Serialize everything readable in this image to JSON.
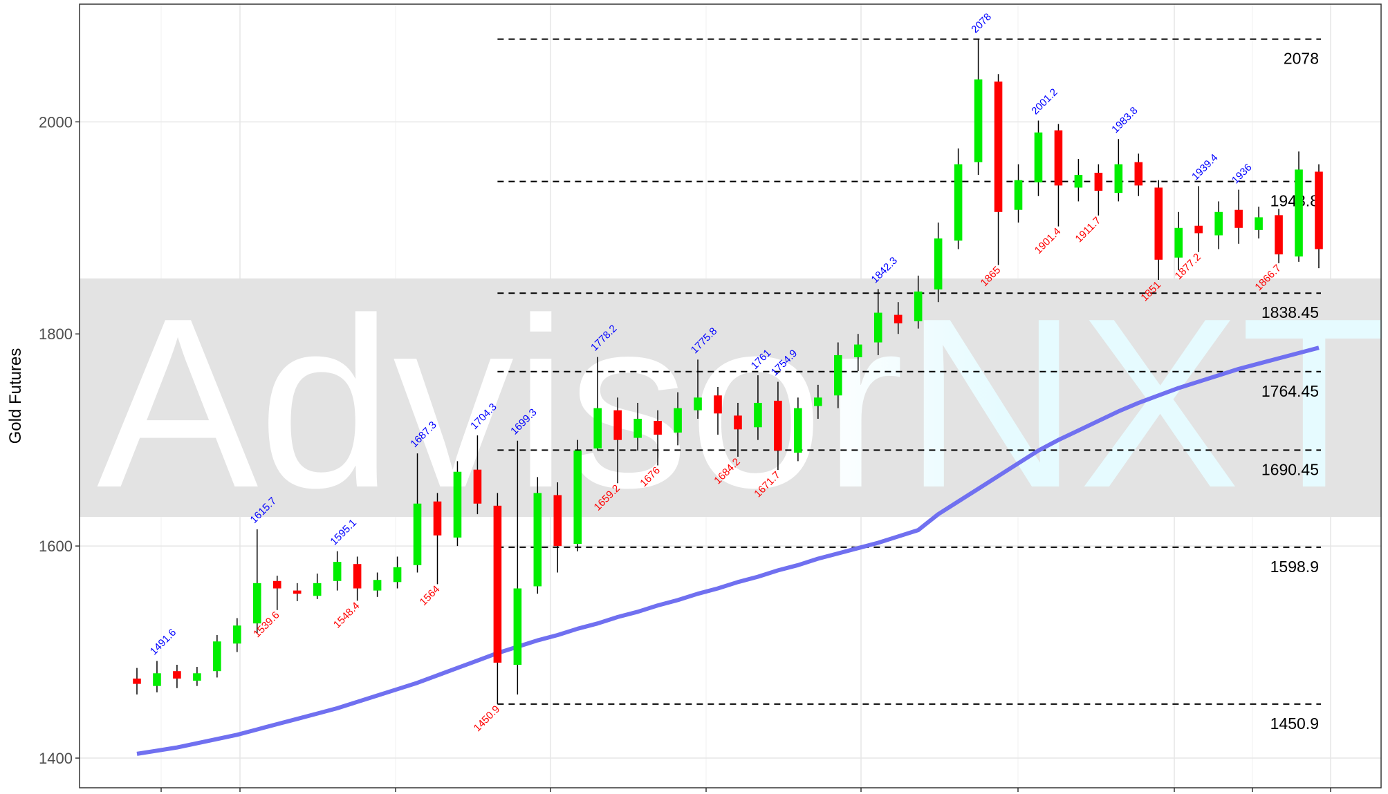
{
  "chart_data": {
    "type": "candlestick",
    "watermark": "AdvisorNXT",
    "y_label": "Gold Futures",
    "ylim": [
      1372,
      2111
    ],
    "yticks": [
      1400,
      1600,
      1800,
      2000
    ],
    "grid": true,
    "up_color": "#00ee00",
    "down_color": "#ff0000",
    "categories": [
      null,
      null,
      null,
      null,
      null,
      null,
      null,
      null,
      null,
      null,
      null,
      null,
      null,
      null,
      null,
      null,
      null,
      null,
      null,
      null,
      null,
      null,
      null,
      null,
      null,
      null,
      null,
      null,
      null,
      null,
      null,
      null,
      null,
      null,
      null,
      null,
      null,
      null,
      null,
      null,
      null,
      null,
      null,
      null,
      null,
      null,
      null,
      null,
      null,
      null,
      null,
      null,
      null,
      null,
      null,
      null,
      null,
      null,
      null,
      null
    ],
    "open": [
      1475,
      1468,
      1482,
      1473,
      1482,
      1508,
      1527,
      1567,
      1558,
      1553,
      1567,
      1583,
      1558,
      1566,
      1582,
      1642,
      1608,
      1672,
      1638,
      1488,
      1562,
      1648,
      1602,
      1692,
      1728,
      1702,
      1718,
      1707,
      1728,
      1742,
      1723,
      1712,
      1737,
      1688,
      1732,
      1742,
      1778,
      1792,
      1818,
      1812,
      1842,
      1888,
      1962,
      2038,
      1917,
      1943,
      1992,
      1938,
      1952,
      1933,
      1962,
      1938,
      1872,
      1902,
      1893,
      1917,
      1898,
      1912,
      1873,
      1953
    ],
    "high": [
      1485,
      1491.6,
      1488,
      1486,
      1516,
      1532,
      1615.7,
      1572,
      1565,
      1574,
      1595.1,
      1590,
      1575,
      1590,
      1687.3,
      1650,
      1680,
      1704.3,
      1650,
      1699.3,
      1665,
      1660,
      1700,
      1778.2,
      1740,
      1735,
      1728,
      1745,
      1775.8,
      1750,
      1735,
      1761,
      1754.9,
      1740,
      1752,
      1792,
      1800,
      1842.3,
      1830,
      1855,
      1905,
      1975,
      2078,
      2045,
      1960,
      2001.2,
      1998,
      1965,
      1960,
      1983.8,
      1970,
      1945,
      1915,
      1939.4,
      1925,
      1936,
      1920,
      1918,
      1972,
      1960
    ],
    "low": [
      1460,
      1462,
      1466,
      1468,
      1476,
      1500,
      1518,
      1539.6,
      1548,
      1550,
      1558,
      1548.4,
      1552,
      1560,
      1575,
      1564,
      1600,
      1630,
      1450.9,
      1460,
      1555,
      1575,
      1595,
      1690,
      1659.2,
      1690,
      1676,
      1695,
      1720,
      1705,
      1684.2,
      1700,
      1671.7,
      1680,
      1720,
      1730,
      1765,
      1780,
      1800,
      1805,
      1830,
      1880,
      1950,
      1865,
      1905,
      1930,
      1901.4,
      1925,
      1911.7,
      1925,
      1930,
      1851,
      1860,
      1877.2,
      1880,
      1885,
      1890,
      1866.7,
      1868,
      1862
    ],
    "close": [
      1470,
      1480,
      1475,
      1480,
      1510,
      1525,
      1565,
      1560,
      1555,
      1565,
      1585,
      1560,
      1568,
      1580,
      1640,
      1610,
      1670,
      1640,
      1490,
      1560,
      1650,
      1600,
      1690,
      1730,
      1700,
      1720,
      1705,
      1730,
      1740,
      1725,
      1710,
      1735,
      1690,
      1730,
      1740,
      1780,
      1790,
      1820,
      1810,
      1840,
      1890,
      1960,
      2040,
      1915,
      1945,
      1990,
      1940,
      1950,
      1935,
      1960,
      1940,
      1870,
      1900,
      1895,
      1915,
      1900,
      1910,
      1875,
      1955,
      1880
    ],
    "high_labels": [
      null,
      1491.6,
      null,
      null,
      null,
      null,
      1615.7,
      null,
      null,
      null,
      1595.1,
      null,
      null,
      null,
      1687.3,
      null,
      null,
      1704.3,
      null,
      1699.3,
      null,
      null,
      null,
      1778.2,
      null,
      null,
      null,
      null,
      1775.8,
      null,
      null,
      1761,
      1754.9,
      null,
      null,
      null,
      null,
      1842.3,
      null,
      null,
      null,
      null,
      2078,
      null,
      null,
      2001.2,
      null,
      null,
      null,
      1983.8,
      null,
      null,
      null,
      1939.4,
      null,
      1936,
      null,
      null,
      null,
      null
    ],
    "low_labels": [
      null,
      null,
      null,
      null,
      null,
      null,
      null,
      1539.6,
      null,
      null,
      null,
      1548.4,
      null,
      null,
      null,
      1564,
      null,
      null,
      1450.9,
      null,
      null,
      null,
      null,
      null,
      1659.2,
      null,
      1676,
      null,
      null,
      null,
      1684.2,
      null,
      1671.7,
      null,
      null,
      null,
      null,
      null,
      null,
      null,
      null,
      null,
      null,
      1865,
      null,
      null,
      1901.4,
      null,
      1911.7,
      null,
      null,
      1851,
      null,
      1877.2,
      null,
      null,
      null,
      1866.7,
      null,
      null
    ],
    "high_label_color": "#0000ff",
    "low_label_color": "#ff0000",
    "moving_average": {
      "color": "#7070f0",
      "values": [
        1404,
        1407,
        1410,
        1414,
        1418,
        1422,
        1427,
        1432,
        1437,
        1442,
        1447,
        1453,
        1459,
        1465,
        1471,
        1478,
        1485,
        1492,
        1499,
        1505,
        1511,
        1516,
        1522,
        1527,
        1533,
        1538,
        1544,
        1549,
        1555,
        1560,
        1566,
        1571,
        1577,
        1582,
        1588,
        1593,
        1598,
        1603,
        1609,
        1615,
        1630,
        1642,
        1654,
        1666,
        1678,
        1690,
        1700,
        1709,
        1718,
        1727,
        1735,
        1742,
        1749,
        1755,
        1761,
        1767,
        1772,
        1777,
        1782,
        1787
      ]
    },
    "levels": [
      2078,
      1943.8,
      1838.45,
      1764.45,
      1690.45,
      1598.9,
      1450.9
    ]
  }
}
